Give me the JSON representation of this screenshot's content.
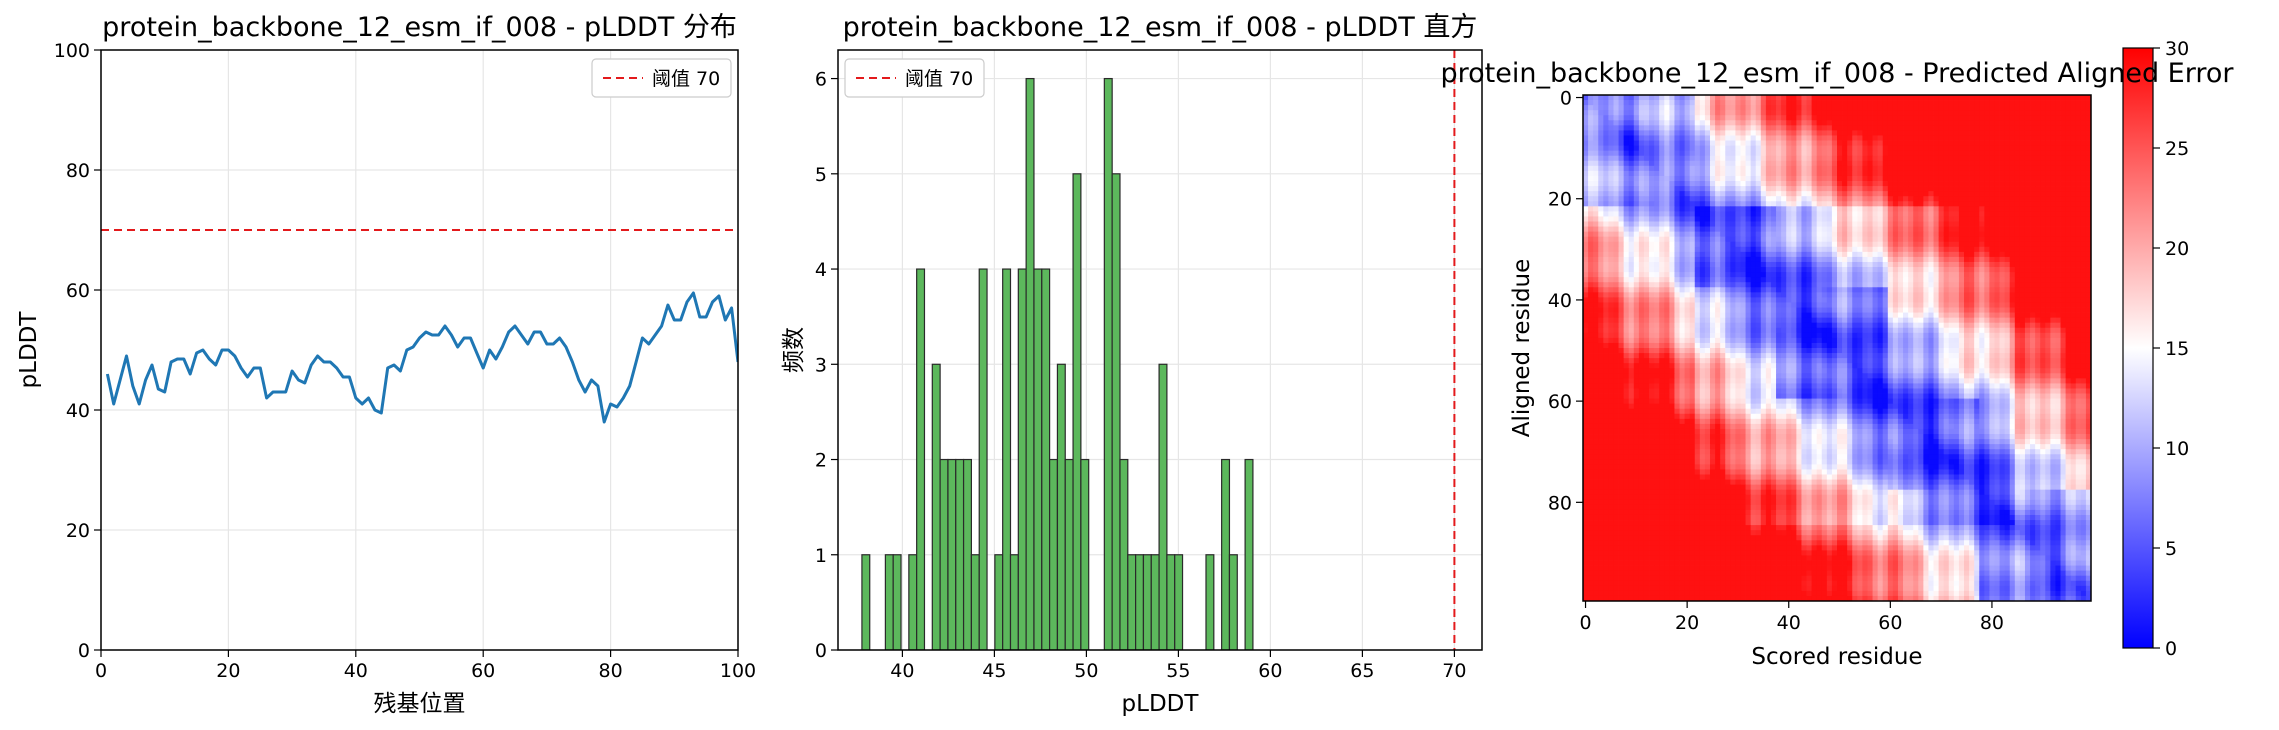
{
  "chart_data": [
    {
      "type": "line",
      "title": "protein_backbone_12_esm_if_008 - pLDDT 分布",
      "xlabel": "残基位置",
      "ylabel": "pLDDT",
      "xlim": [
        0,
        100
      ],
      "ylim": [
        0,
        100
      ],
      "xticks": [
        0,
        20,
        40,
        60,
        80,
        100
      ],
      "yticks": [
        0,
        20,
        40,
        60,
        80,
        100
      ],
      "grid": true,
      "legend": {
        "placement": "top-right",
        "entries": [
          "阈值 70"
        ]
      },
      "threshold": {
        "value": 70,
        "label": "阈值 70",
        "color": "#e31a1c"
      },
      "series": [
        {
          "color": "#1f77b4",
          "x": [
            1,
            2,
            3,
            4,
            5,
            6,
            7,
            8,
            9,
            10,
            11,
            12,
            13,
            14,
            15,
            16,
            17,
            18,
            19,
            20,
            21,
            22,
            23,
            24,
            25,
            26,
            27,
            28,
            29,
            30,
            31,
            32,
            33,
            34,
            35,
            36,
            37,
            38,
            39,
            40,
            41,
            42,
            43,
            44,
            45,
            46,
            47,
            48,
            49,
            50,
            51,
            52,
            53,
            54,
            55,
            56,
            57,
            58,
            59,
            60,
            61,
            62,
            63,
            64,
            65,
            66,
            67,
            68,
            69,
            70,
            71,
            72,
            73,
            74,
            75,
            76,
            77,
            78,
            79,
            80,
            81,
            82,
            83,
            84,
            85,
            86,
            87,
            88,
            89,
            90,
            91,
            92,
            93,
            94,
            95,
            96,
            97,
            98,
            99,
            100
          ],
          "values": [
            46,
            41,
            45,
            49,
            44,
            41,
            45,
            47.5,
            43.5,
            43,
            48,
            48.5,
            48.5,
            46,
            49.5,
            50,
            48.5,
            47.5,
            50,
            50,
            49,
            47,
            45.5,
            47,
            47,
            42,
            43,
            43,
            43,
            46.5,
            45,
            44.5,
            47.5,
            49,
            48,
            48,
            47,
            45.5,
            45.5,
            42,
            41,
            42,
            40,
            39.5,
            47,
            47.5,
            46.5,
            50,
            50.5,
            52,
            53,
            52.5,
            52.5,
            54,
            52.5,
            50.5,
            52,
            52,
            49.5,
            47,
            50,
            48.5,
            50.5,
            53,
            54,
            52.5,
            51,
            53,
            53,
            51,
            51,
            52,
            50.5,
            48,
            45,
            43,
            45,
            44,
            38,
            41,
            40.5,
            42,
            44,
            48,
            52,
            51,
            52.5,
            54,
            57.5,
            55,
            55,
            58,
            59.5,
            55.5,
            55.5,
            58,
            59,
            55,
            57,
            48
          ]
        }
      ]
    },
    {
      "type": "bar",
      "title": "protein_backbone_12_esm_if_008 - pLDDT 直方",
      "xlabel": "pLDDT",
      "ylabel": "频数",
      "xlim": [
        36.5,
        71.5
      ],
      "ylim": [
        0,
        6.3
      ],
      "xticks": [
        40,
        45,
        50,
        55,
        60,
        65,
        70
      ],
      "yticks": [
        0,
        1,
        2,
        3,
        4,
        5,
        6
      ],
      "grid": true,
      "legend": {
        "placement": "top-left",
        "entries": [
          "阈值 70"
        ]
      },
      "threshold": {
        "value": 70,
        "label": "阈值 70",
        "color": "#e31a1c"
      },
      "bar_color": "#5cb85c",
      "bin_width": 0.425,
      "bin_starts": [
        37.8,
        38.225,
        38.65,
        39.075,
        39.5,
        39.925,
        40.35,
        40.775,
        41.2,
        41.625,
        42.05,
        42.475,
        42.9,
        43.325,
        43.75,
        44.175,
        44.6,
        45.025,
        45.45,
        45.875,
        46.3,
        46.725,
        47.15,
        47.575,
        48.0,
        48.425,
        48.85,
        49.275,
        49.7,
        50.125,
        50.55,
        50.975,
        51.4,
        51.825,
        52.25,
        52.675,
        53.1,
        53.525,
        53.95,
        54.375,
        54.8,
        55.225,
        55.65,
        56.075,
        56.5,
        56.925,
        57.35,
        57.775,
        58.2,
        58.625,
        59.05
      ],
      "values": [
        1,
        0,
        0,
        1,
        1,
        0,
        1,
        4,
        0,
        3,
        2,
        2,
        2,
        2,
        1,
        4,
        0,
        1,
        4,
        1,
        4,
        6,
        4,
        4,
        2,
        3,
        2,
        5,
        2,
        0,
        0,
        6,
        5,
        2,
        1,
        1,
        1,
        1,
        3,
        1,
        1,
        0,
        0,
        0,
        1,
        0,
        2,
        1,
        0,
        2,
        0
      ]
    },
    {
      "type": "heatmap",
      "title": "protein_backbone_12_esm_if_008 - Predicted Aligned Error",
      "xlabel": "Scored residue",
      "ylabel": "Aligned residue",
      "size": 100,
      "xticks": [
        0,
        20,
        40,
        60,
        80
      ],
      "yticks": [
        0,
        20,
        40,
        60,
        80
      ],
      "colormap": "bwr",
      "colorbar": {
        "min": 0,
        "max": 30,
        "ticks": [
          0,
          5,
          10,
          15,
          20,
          25,
          30
        ]
      }
    }
  ]
}
